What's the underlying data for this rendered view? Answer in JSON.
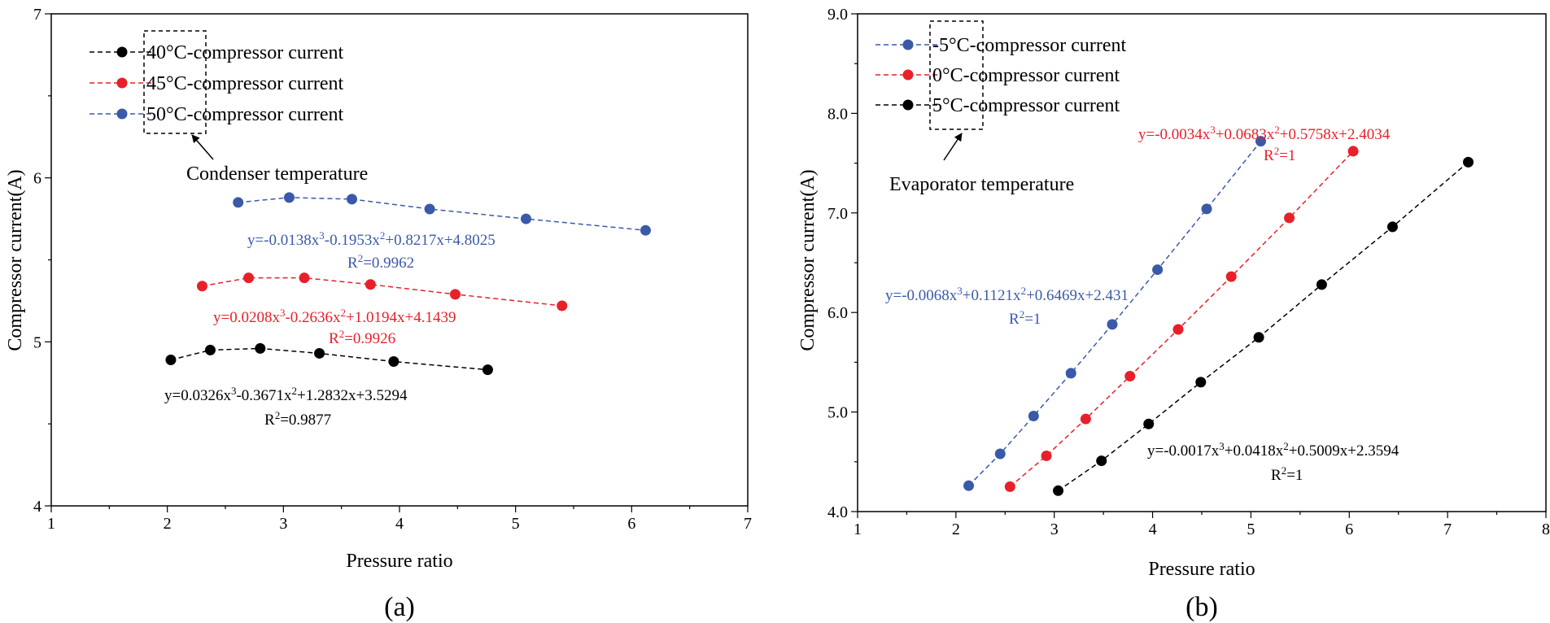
{
  "chart_data": [
    {
      "type": "line",
      "panel_label": "(a)",
      "xlabel": "Pressure ratio",
      "ylabel": "Compressor current(A)",
      "xlim": [
        1,
        7
      ],
      "ylim": [
        4,
        7
      ],
      "x_ticks": [
        "1",
        "2",
        "3",
        "4",
        "5",
        "6",
        "7"
      ],
      "y_ticks": [
        "4",
        "5",
        "6",
        "7"
      ],
      "legend_box_label": "Condenser temperature",
      "legend_position": "top-left",
      "series": [
        {
          "name": "40°C-compressor current",
          "color": "#000000",
          "x": [
            2.03,
            2.37,
            2.8,
            3.31,
            3.95,
            4.76
          ],
          "y": [
            4.89,
            4.95,
            4.96,
            4.93,
            4.88,
            4.83
          ],
          "fit_equation": "y=0.0326x3-0.3671x2+1.2832x+3.5294",
          "fit_r2": "R2=0.9877"
        },
        {
          "name": "45°C-compressor current",
          "color": "#e8202a",
          "x": [
            2.3,
            2.7,
            3.18,
            3.75,
            4.48,
            5.4
          ],
          "y": [
            5.34,
            5.39,
            5.39,
            5.35,
            5.29,
            5.22
          ],
          "fit_equation": "y=0.0208x3-0.2636x2+1.0194x+4.1439",
          "fit_r2": "R2=0.9926"
        },
        {
          "name": "50°C-compressor current",
          "color": "#3a5aa8",
          "x": [
            2.61,
            3.05,
            3.59,
            4.26,
            5.09,
            6.12
          ],
          "y": [
            5.85,
            5.88,
            5.87,
            5.81,
            5.75,
            5.68
          ],
          "fit_equation": "y=-0.0138x3-0.1953x2+0.8217x+4.8025",
          "fit_r2": "R2=0.9962"
        }
      ]
    },
    {
      "type": "line",
      "panel_label": "(b)",
      "xlabel": "Pressure ratio",
      "ylabel": "Compressor current(A)",
      "xlim": [
        1,
        8
      ],
      "ylim": [
        4.0,
        9.0
      ],
      "x_ticks": [
        "1",
        "2",
        "3",
        "4",
        "5",
        "6",
        "7",
        "8"
      ],
      "y_ticks": [
        "4.0",
        "5.0",
        "6.0",
        "7.0",
        "8.0",
        "9.0"
      ],
      "legend_box_label": "Evaporator temperature",
      "legend_position": "top-left",
      "series": [
        {
          "name": "-5°C-compressor current",
          "color": "#3a5aa8",
          "x": [
            2.13,
            2.45,
            2.79,
            3.17,
            3.59,
            4.05,
            4.55,
            5.1
          ],
          "y": [
            4.26,
            4.58,
            4.96,
            5.39,
            5.88,
            6.43,
            7.04,
            7.72
          ],
          "fit_equation": "y=-0.0068x3+0.1121x2+0.6469x+2.431",
          "fit_r2": "R2=1"
        },
        {
          "name": "0°C-compressor current",
          "color": "#e8202a",
          "x": [
            2.55,
            2.92,
            3.32,
            3.77,
            4.26,
            4.8,
            5.39,
            6.04
          ],
          "y": [
            4.25,
            4.56,
            4.93,
            5.36,
            5.83,
            6.36,
            6.95,
            7.62
          ],
          "fit_equation": "y=-0.0034x3+0.0683x2+0.5758x+2.4034",
          "fit_r2": "R2=1"
        },
        {
          "name": "5°C-compressor current",
          "color": "#000000",
          "x": [
            3.04,
            3.48,
            3.96,
            4.49,
            5.08,
            5.72,
            6.44,
            7.21
          ],
          "y": [
            4.21,
            4.51,
            4.88,
            5.3,
            5.75,
            6.28,
            6.86,
            7.51
          ],
          "fit_equation": "y=-0.0017x3+0.0418x2+0.5009x+2.3594",
          "fit_r2": "R2=1"
        }
      ]
    }
  ]
}
